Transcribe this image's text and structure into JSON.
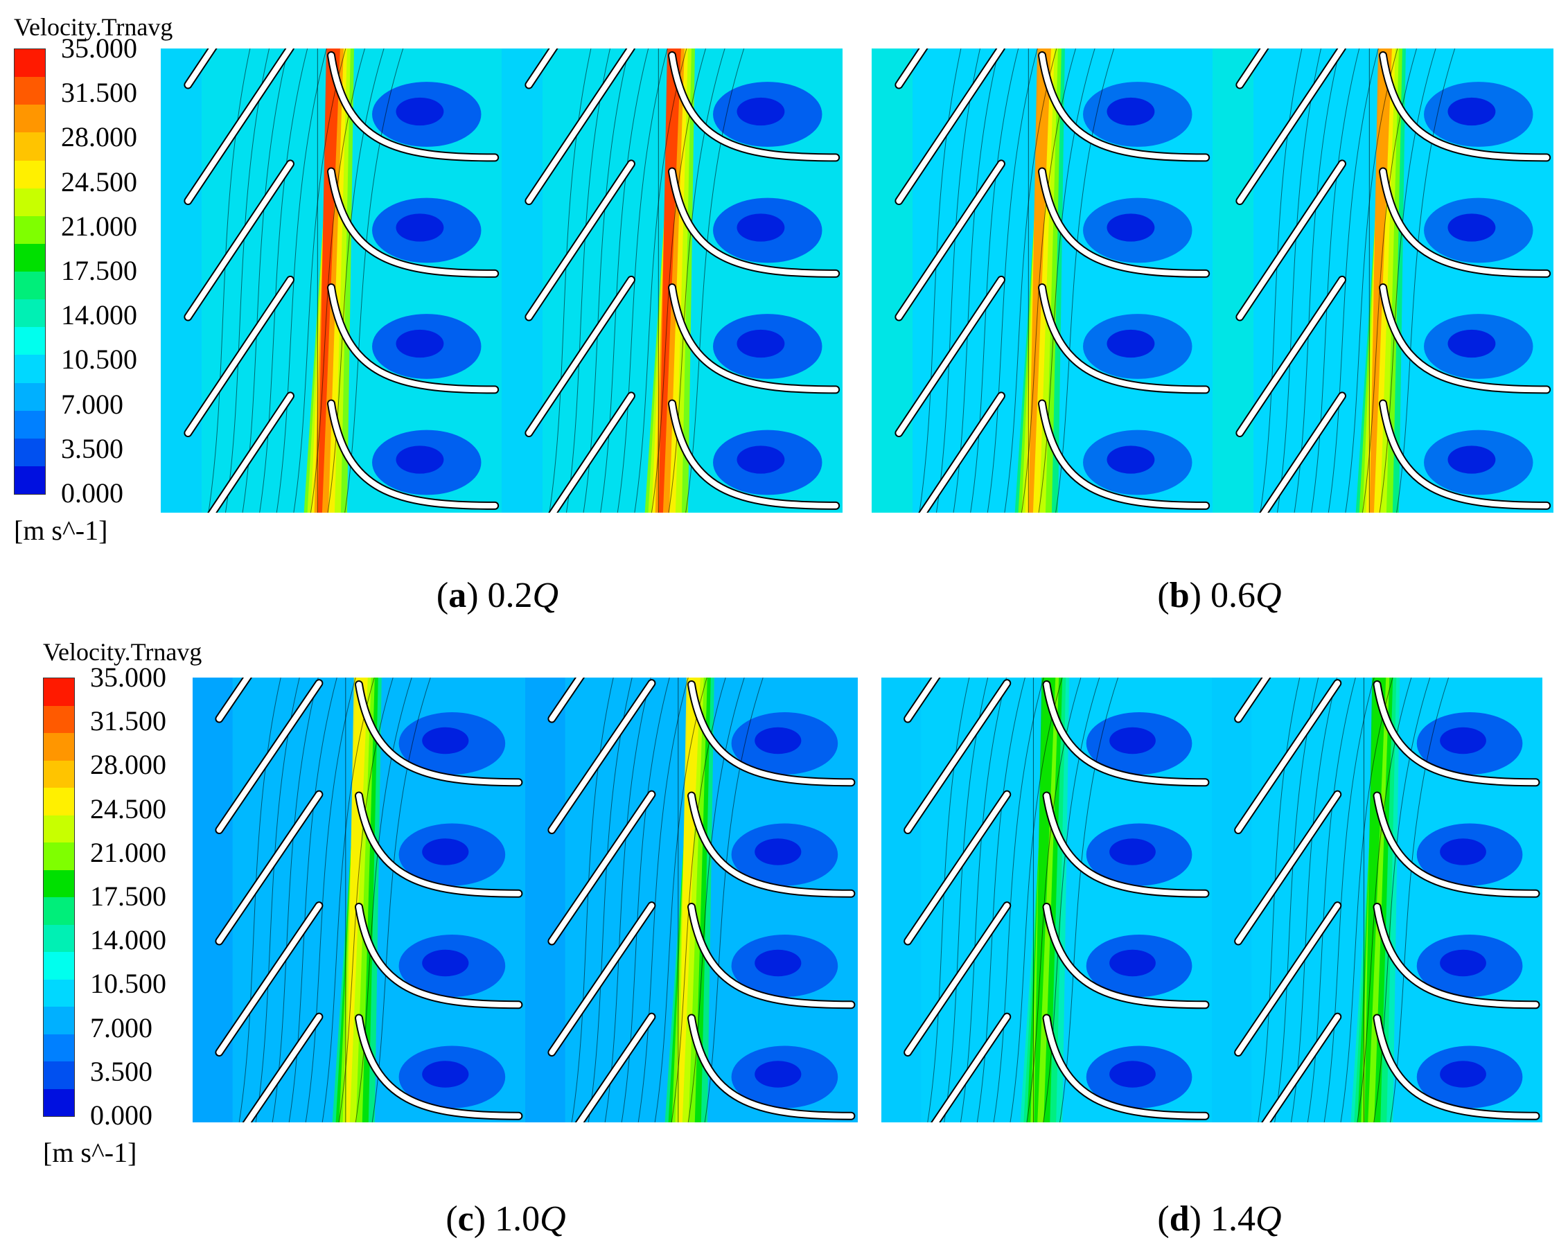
{
  "legend": {
    "title": "Velocity.Trnavg",
    "unit": "[m s^-1]",
    "ticks": [
      "35.000",
      "31.500",
      "28.000",
      "24.500",
      "21.000",
      "17.500",
      "14.000",
      "10.500",
      "7.000",
      "3.500",
      "0.000"
    ],
    "colors": [
      "#ff1a00",
      "#ff5a00",
      "#ff9600",
      "#ffc400",
      "#fff000",
      "#c8ff00",
      "#7fff00",
      "#00e000",
      "#00ee7a",
      "#00f0b4",
      "#00ffee",
      "#00d8ff",
      "#00b0ff",
      "#0080ff",
      "#0050f0",
      "#0010e0"
    ]
  },
  "panels": [
    {
      "letter": "a",
      "value": "0.2",
      "var": "Q"
    },
    {
      "letter": "b",
      "value": "0.6",
      "var": "Q"
    },
    {
      "letter": "c",
      "value": "1.0",
      "var": "Q"
    },
    {
      "letter": "d",
      "value": "1.4",
      "var": "Q"
    }
  ]
}
